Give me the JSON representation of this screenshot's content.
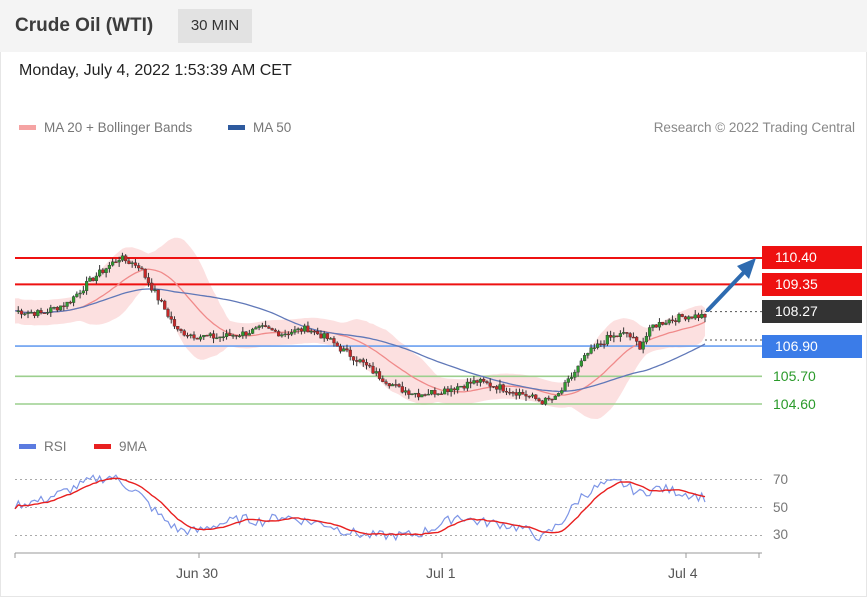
{
  "header": {
    "title": "Crude Oil (WTI)",
    "timeframe": "30 MIN"
  },
  "datetime": "Monday, July 4, 2022 1:53:39 AM CET",
  "legend": {
    "ma20": {
      "label": "MA 20 + Bollinger Bands",
      "color": "#f08080"
    },
    "ma50": {
      "label": "MA 50",
      "color": "#2e5a9e"
    },
    "copyright": "Research © 2022 Trading Central"
  },
  "levels": [
    {
      "value": 110.4,
      "label": "110.40",
      "type": "resistance",
      "color": "#ee1111"
    },
    {
      "value": 109.35,
      "label": "109.35",
      "type": "resistance",
      "color": "#ee1111"
    },
    {
      "value": 108.27,
      "label": "108.27",
      "type": "last",
      "color": "#333333"
    },
    {
      "value": 106.9,
      "label": "106.90",
      "type": "pivot",
      "color": "#3b7ce8"
    },
    {
      "value": 105.7,
      "label": "105.70",
      "type": "support",
      "color": "#2a9a2a"
    },
    {
      "value": 104.6,
      "label": "104.60",
      "type": "support",
      "color": "#2a9a2a"
    }
  ],
  "rsi_legend": {
    "rsi": {
      "label": "RSI",
      "color": "#5b7be0"
    },
    "ma9": {
      "label": "9MA",
      "color": "#e82020"
    }
  },
  "rsi_ticks": [
    "70",
    "50",
    "30"
  ],
  "x_ticks": [
    "Jun 30",
    "Jul 1",
    "Jul 4"
  ],
  "chart_data": {
    "type": "candlestick",
    "y_levels": [
      110.4,
      109.35,
      108.27,
      106.9,
      105.7,
      104.6
    ],
    "close_path": [
      [
        0,
        108.3
      ],
      [
        8,
        108.2
      ],
      [
        16,
        108.6
      ],
      [
        24,
        109.6
      ],
      [
        32,
        110.4
      ],
      [
        38,
        110.1
      ],
      [
        44,
        108.8
      ],
      [
        50,
        107.5
      ],
      [
        56,
        107.3
      ],
      [
        62,
        107.25
      ],
      [
        70,
        107.4
      ],
      [
        76,
        107.6
      ],
      [
        82,
        107.4
      ],
      [
        90,
        107.6
      ],
      [
        96,
        107.2
      ],
      [
        100,
        106.8
      ],
      [
        106,
        106.3
      ],
      [
        112,
        105.7
      ],
      [
        118,
        105.2
      ],
      [
        124,
        105.0
      ],
      [
        130,
        105.1
      ],
      [
        136,
        105.3
      ],
      [
        142,
        105.5
      ],
      [
        148,
        105.3
      ],
      [
        156,
        105.0
      ],
      [
        162,
        104.7
      ],
      [
        166,
        104.8
      ],
      [
        170,
        105.5
      ],
      [
        176,
        106.6
      ],
      [
        182,
        107.2
      ],
      [
        188,
        107.4
      ],
      [
        192,
        106.9
      ],
      [
        196,
        107.7
      ],
      [
        200,
        107.9
      ],
      [
        206,
        108.1
      ],
      [
        212,
        108.1
      ]
    ],
    "rsi_path": [
      [
        0,
        52
      ],
      [
        8,
        55
      ],
      [
        16,
        62
      ],
      [
        24,
        70
      ],
      [
        30,
        72
      ],
      [
        38,
        60
      ],
      [
        44,
        45
      ],
      [
        50,
        34
      ],
      [
        56,
        33
      ],
      [
        62,
        38
      ],
      [
        70,
        42
      ],
      [
        76,
        40
      ],
      [
        82,
        44
      ],
      [
        90,
        40
      ],
      [
        96,
        38
      ],
      [
        100,
        34
      ],
      [
        108,
        30
      ],
      [
        118,
        30
      ],
      [
        124,
        31
      ],
      [
        130,
        37
      ],
      [
        136,
        44
      ],
      [
        142,
        40
      ],
      [
        150,
        38
      ],
      [
        156,
        35
      ],
      [
        162,
        28
      ],
      [
        168,
        40
      ],
      [
        174,
        58
      ],
      [
        180,
        66
      ],
      [
        186,
        68
      ],
      [
        192,
        60
      ],
      [
        198,
        64
      ],
      [
        204,
        61
      ],
      [
        212,
        57
      ]
    ],
    "rsi_ticks": [
      70,
      50,
      30
    ],
    "x_ticks": [
      "Jun 30",
      "Jul 1",
      "Jul 4"
    ]
  }
}
